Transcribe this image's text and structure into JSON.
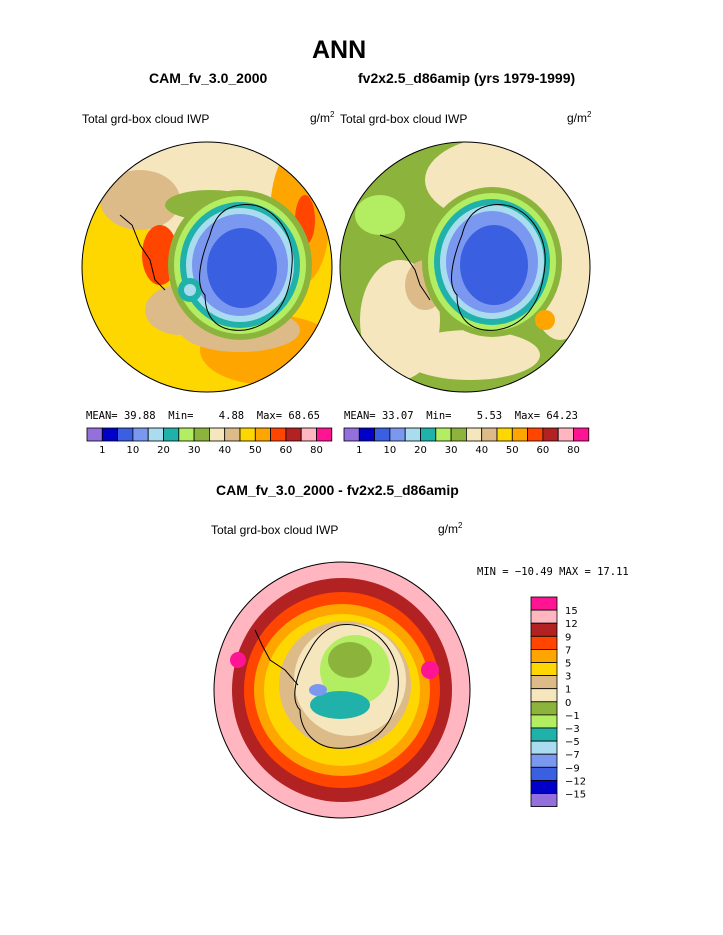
{
  "title": "ANN",
  "panels": [
    {
      "case_title": "CAM_fv_3.0_2000",
      "field_label": "Total grd-box cloud IWP",
      "units": "g/m",
      "units_sup": "2",
      "stats": {
        "mean_label": "MEAN=",
        "mean": "39.88",
        "min_label": "Min=",
        "min": "4.88",
        "max_label": "Max=",
        "max": "68.65"
      }
    },
    {
      "case_title": "fv2x2.5_d86amip (yrs 1979-1999)",
      "field_label": "Total grd-box cloud IWP",
      "units": "g/m",
      "units_sup": "2",
      "stats": {
        "mean_label": "MEAN=",
        "mean": "33.07",
        "min_label": "Min=",
        "min": "5.53",
        "max_label": "Max=",
        "max": "64.23"
      }
    }
  ],
  "colorbar_top": {
    "labels": [
      "1",
      "10",
      "20",
      "30",
      "40",
      "50",
      "60",
      "80"
    ],
    "colors": [
      "#9370db",
      "#0000c8",
      "#3a5fe0",
      "#7b98f0",
      "#a9dcee",
      "#20b2aa",
      "#b3ee62",
      "#8cb43c",
      "#f5e6be",
      "#ddbb88",
      "#ffd700",
      "#ffa500",
      "#ff4500",
      "#b22222",
      "#ffb6c1",
      "#ff1493"
    ]
  },
  "difference": {
    "title": "CAM_fv_3.0_2000 - fv2x2.5_d86amip",
    "field_label": "Total grd-box cloud IWP",
    "units": "g/m",
    "units_sup": "2",
    "minmax": "MIN = −10.49 MAX =  17.11"
  },
  "colorbar_diff": {
    "labels": [
      "15",
      "12",
      "9",
      "7",
      "5",
      "3",
      "1",
      "0",
      "−1",
      "−3",
      "−5",
      "−7",
      "−9",
      "−12",
      "−15"
    ],
    "colors": [
      "#ff1493",
      "#ffb6c1",
      "#b22222",
      "#ff4500",
      "#ffa500",
      "#ffd700",
      "#ddbb88",
      "#f5e6be",
      "#8cb43c",
      "#b3ee62",
      "#20b2aa",
      "#a9dcee",
      "#7b98f0",
      "#3a5fe0",
      "#0000c8",
      "#9370db"
    ]
  }
}
